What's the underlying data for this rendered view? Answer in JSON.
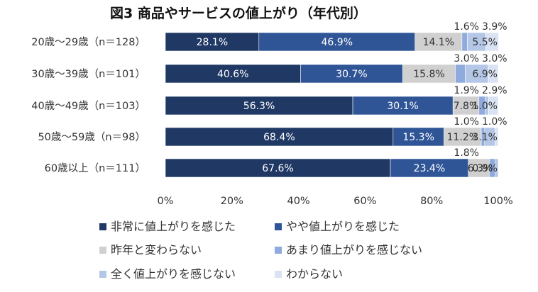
{
  "chart_data": {
    "type": "bar",
    "orientation": "horizontal-stacked-100",
    "title": "図3 商品やサービスの値上がり（年代別）",
    "categories": [
      "20歳～29歳（n＝128）",
      "30歳～39歳（n＝101）",
      "40歳～49歳（n＝103）",
      "50歳～59歳（n＝98）",
      "60歳以上（n＝111）"
    ],
    "series": [
      {
        "name": "非常に値上がりを感じた",
        "color": "#203864",
        "values": [
          28.1,
          40.6,
          56.3,
          68.4,
          67.6
        ]
      },
      {
        "name": "やや値上がりを感じた",
        "color": "#2f5597",
        "values": [
          46.9,
          30.7,
          30.1,
          15.3,
          23.4
        ]
      },
      {
        "name": "昨年と変わらない",
        "color": "#d0d0d0",
        "values": [
          14.1,
          15.8,
          7.8,
          11.2,
          6.3
        ]
      },
      {
        "name": "あまり値上がりを感じない",
        "color": "#8faadc",
        "values": [
          1.6,
          3.0,
          1.9,
          1.0,
          1.8
        ]
      },
      {
        "name": "全く値上がりを感じない",
        "color": "#b4c7e7",
        "values": [
          5.5,
          6.9,
          1.0,
          3.1,
          0.9
        ]
      },
      {
        "name": "わからない",
        "color": "#dae3f3",
        "values": [
          3.9,
          3.0,
          2.9,
          1.0,
          0.0
        ]
      }
    ],
    "data_labels": [
      [
        "28.1%",
        "46.9%",
        "14.1%",
        "1.6%",
        "5.5%",
        "3.9%"
      ],
      [
        "40.6%",
        "30.7%",
        "15.8%",
        "3.0%",
        "6.9%",
        "3.0%"
      ],
      [
        "56.3%",
        "30.1%",
        "7.8%",
        "1.9%",
        "1.0%",
        "2.9%"
      ],
      [
        "68.4%",
        "15.3%",
        "11.2%",
        "1.0%",
        "3.1%",
        "1.0%"
      ],
      [
        "67.6%",
        "23.4%",
        "6.3%",
        "1.8%",
        "0.9%",
        ""
      ]
    ],
    "x_ticks": [
      "0%",
      "20%",
      "40%",
      "60%",
      "80%",
      "100%"
    ],
    "xlim": [
      0,
      100
    ],
    "grid": false,
    "legend_position": "bottom"
  }
}
